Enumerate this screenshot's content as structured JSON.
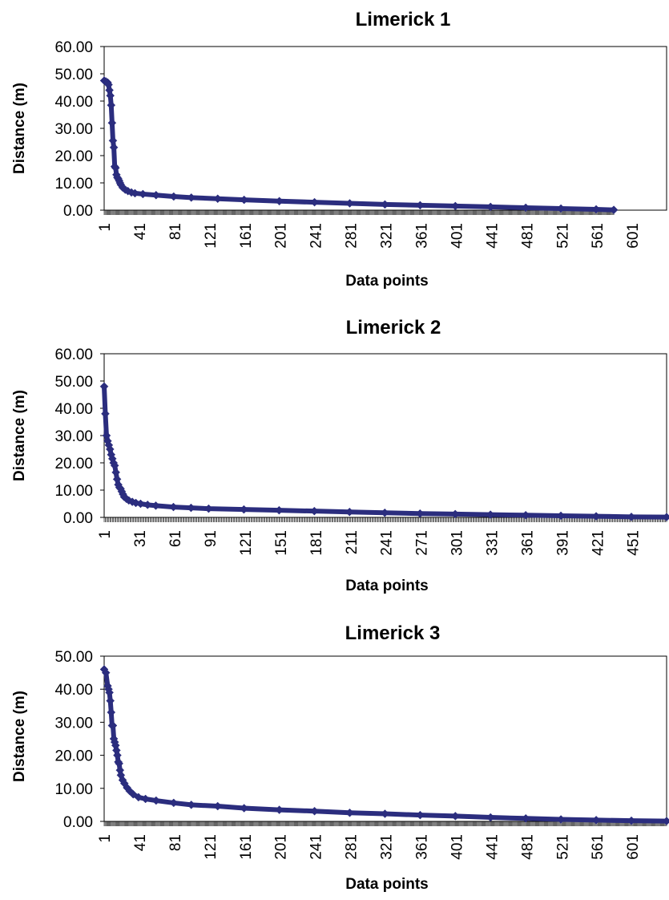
{
  "chart_data": [
    {
      "type": "line",
      "title": "Limerick 1",
      "xlabel": "Data points",
      "ylabel": "Distance (m)",
      "y_ticks": [
        "0.00",
        "10.00",
        "20.00",
        "30.00",
        "40.00",
        "50.00",
        "60.00"
      ],
      "ylim": [
        0,
        60
      ],
      "x_ticks": [
        "1",
        "41",
        "81",
        "121",
        "161",
        "201",
        "241",
        "281",
        "321",
        "361",
        "401",
        "441",
        "481",
        "521",
        "561",
        "601"
      ],
      "xlim": [
        1,
        640
      ],
      "n_points": 580,
      "grid": false,
      "legend": "none",
      "marker": "diamond",
      "series_color": "#2b2d7e",
      "series": [
        {
          "x": [
            1,
            3,
            5,
            6,
            7,
            8,
            9,
            10,
            11,
            12,
            13,
            14,
            15,
            16,
            17,
            18,
            19,
            20,
            22,
            25,
            28,
            32,
            36,
            45,
            60,
            80,
            100,
            130,
            160,
            200,
            240,
            280,
            320,
            360,
            400,
            440,
            480,
            520,
            560,
            580
          ],
          "y": [
            47.5,
            47.2,
            46.8,
            46.0,
            44.0,
            42.0,
            38.5,
            32.0,
            25.5,
            23.0,
            16.0,
            15.5,
            13.0,
            12.0,
            11.5,
            10.8,
            10.0,
            9.3,
            8.3,
            7.5,
            7.0,
            6.5,
            6.2,
            5.9,
            5.5,
            5.0,
            4.6,
            4.2,
            3.8,
            3.3,
            2.9,
            2.5,
            2.1,
            1.8,
            1.5,
            1.2,
            0.9,
            0.6,
            0.3,
            0.1
          ]
        }
      ]
    },
    {
      "type": "line",
      "title": "Limerick 2",
      "xlabel": "Data points",
      "ylabel": "Distance (m)",
      "y_ticks": [
        "0.00",
        "10.00",
        "20.00",
        "30.00",
        "40.00",
        "50.00",
        "60.00"
      ],
      "ylim": [
        0,
        60
      ],
      "x_ticks": [
        "1",
        "31",
        "61",
        "91",
        "121",
        "151",
        "181",
        "211",
        "241",
        "271",
        "301",
        "331",
        "361",
        "391",
        "421",
        "451"
      ],
      "xlim": [
        1,
        480
      ],
      "n_points": 480,
      "grid": false,
      "legend": "none",
      "marker": "diamond",
      "series_color": "#2b2d7e",
      "series": [
        {
          "x": [
            1,
            2,
            3,
            4,
            5,
            6,
            7,
            8,
            9,
            10,
            11,
            12,
            13,
            14,
            15,
            16,
            17,
            18,
            20,
            22,
            25,
            28,
            32,
            38,
            45,
            60,
            75,
            90,
            120,
            150,
            180,
            210,
            240,
            270,
            300,
            330,
            360,
            390,
            420,
            450,
            480
          ],
          "y": [
            48.0,
            38.0,
            30.0,
            28.0,
            26.5,
            25.0,
            23.0,
            21.5,
            20.0,
            19.0,
            16.5,
            14.0,
            12.0,
            11.0,
            10.5,
            9.5,
            8.5,
            7.5,
            6.8,
            6.2,
            5.7,
            5.3,
            5.0,
            4.6,
            4.3,
            3.8,
            3.5,
            3.2,
            2.9,
            2.6,
            2.3,
            2.0,
            1.7,
            1.4,
            1.2,
            1.0,
            0.8,
            0.6,
            0.4,
            0.2,
            0.1
          ]
        }
      ]
    },
    {
      "type": "line",
      "title": "Limerick 3",
      "xlabel": "Data points",
      "ylabel": "Distance (m)",
      "y_ticks": [
        "0.00",
        "10.00",
        "20.00",
        "30.00",
        "40.00",
        "50.00"
      ],
      "ylim": [
        0,
        50
      ],
      "x_ticks": [
        "1",
        "41",
        "81",
        "121",
        "161",
        "201",
        "241",
        "281",
        "321",
        "361",
        "401",
        "441",
        "481",
        "521",
        "561",
        "601"
      ],
      "xlim": [
        1,
        640
      ],
      "n_points": 640,
      "grid": false,
      "legend": "none",
      "marker": "diamond",
      "series_color": "#2b2d7e",
      "series": [
        {
          "x": [
            1,
            3,
            5,
            6,
            7,
            8,
            9,
            10,
            11,
            12,
            13,
            14,
            15,
            16,
            17,
            18,
            19,
            20,
            22,
            24,
            27,
            30,
            34,
            40,
            48,
            60,
            80,
            100,
            130,
            160,
            200,
            240,
            280,
            320,
            360,
            400,
            440,
            480,
            520,
            560,
            600,
            640
          ],
          "y": [
            46.0,
            45.0,
            41.0,
            40.0,
            39.0,
            36.5,
            33.0,
            29.0,
            29.0,
            25.0,
            24.0,
            23.0,
            21.5,
            20.0,
            18.0,
            17.5,
            15.5,
            14.0,
            12.5,
            11.5,
            10.2,
            9.2,
            8.2,
            7.3,
            6.8,
            6.3,
            5.6,
            5.0,
            4.6,
            4.0,
            3.5,
            3.1,
            2.6,
            2.3,
            1.9,
            1.6,
            1.2,
            0.9,
            0.6,
            0.4,
            0.2,
            0.1
          ]
        }
      ]
    }
  ]
}
